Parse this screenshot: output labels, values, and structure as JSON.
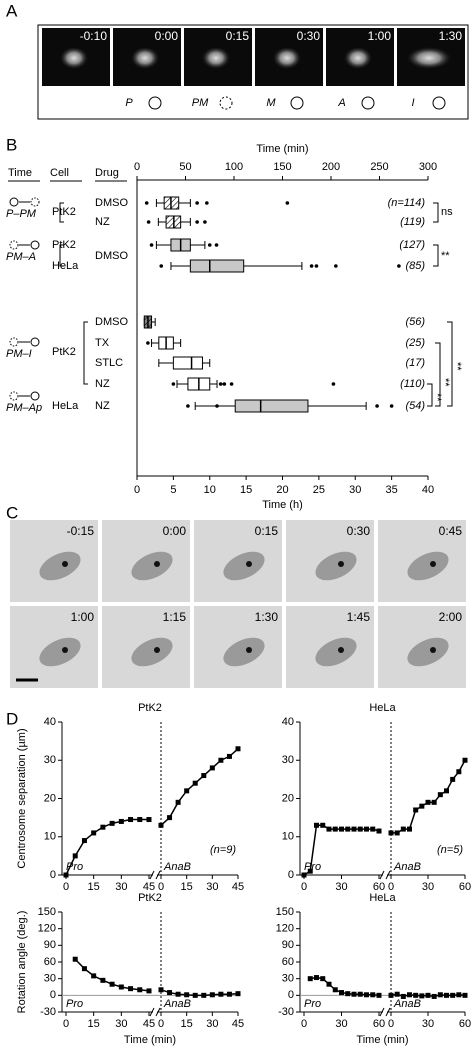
{
  "panel_labels": [
    "A",
    "B",
    "C",
    "D"
  ],
  "panel_a": {
    "frames": [
      "-0:10",
      "0:00",
      "0:15",
      "0:30",
      "1:00",
      "1:30"
    ],
    "phases": [
      "P",
      "PM",
      "M",
      "A",
      "I"
    ]
  },
  "panel_c": {
    "frames": [
      "-0:15",
      "0:00",
      "0:15",
      "0:30",
      "0:45",
      "1:00",
      "1:15",
      "1:30",
      "1:45",
      "2:00"
    ]
  },
  "chart_data": [
    {
      "type": "box",
      "headers": [
        "Time",
        "Cell",
        "Drug"
      ],
      "transitions": [
        "P–PM",
        "PM–A",
        "PM–I",
        "PM–Ap"
      ],
      "cells": [
        "PtK2",
        "PtK2",
        "HeLa",
        "PtK2",
        "HeLa"
      ],
      "shared_drug": "DMSO",
      "xlabel_top": "Time (min)",
      "xlim_top": [
        0,
        300
      ],
      "xticks_top": [
        0,
        50,
        100,
        150,
        200,
        250,
        300
      ],
      "xlabel": "Time (h)",
      "xlim": [
        0,
        40
      ],
      "xticks": [
        0,
        5,
        10,
        15,
        20,
        25,
        30,
        35,
        40
      ],
      "rows": [
        {
          "drug": "DMSO",
          "n_label": "(n=114)",
          "scale": "top",
          "color": "#ffffff",
          "hatched": true,
          "whislo": 20,
          "q1": 28,
          "med": 35,
          "q3": 43,
          "whishi": 55,
          "fliers": [
            10,
            62,
            72,
            155
          ]
        },
        {
          "drug": "NZ",
          "n_label": "(119)",
          "scale": "top",
          "color": "#ffffff",
          "hatched": true,
          "whislo": 22,
          "q1": 30,
          "med": 38,
          "q3": 45,
          "whishi": 55,
          "fliers": [
            12,
            62,
            70
          ]
        },
        {
          "n_label": "(127)",
          "scale": "top",
          "color": "#c8c8c8",
          "hatched": false,
          "whislo": 20,
          "q1": 35,
          "med": 45,
          "q3": 55,
          "whishi": 70,
          "fliers": [
            15,
            75,
            82
          ]
        },
        {
          "n_label": "(85)",
          "scale": "top",
          "color": "#c8c8c8",
          "hatched": false,
          "whislo": 35,
          "q1": 55,
          "med": 75,
          "q3": 110,
          "whishi": 170,
          "fliers": [
            25,
            180,
            185,
            205,
            270
          ]
        },
        {
          "drug": "DMSO",
          "n_label": "(56)",
          "scale": "bottom",
          "color": "#808080",
          "hatched": true,
          "whislo": 1,
          "q1": 1,
          "med": 1.5,
          "q3": 2,
          "whishi": 2.5,
          "fliers": []
        },
        {
          "drug": "TX",
          "n_label": "(25)",
          "scale": "bottom",
          "color": "#ffffff",
          "hatched": false,
          "whislo": 2,
          "q1": 3,
          "med": 4,
          "q3": 5,
          "whishi": 6,
          "fliers": [
            1.5
          ]
        },
        {
          "drug": "STLC",
          "n_label": "(17)",
          "scale": "bottom",
          "color": "#ffffff",
          "hatched": false,
          "whislo": 3,
          "q1": 5,
          "med": 7.5,
          "q3": 9,
          "whishi": 10,
          "fliers": []
        },
        {
          "drug": "NZ",
          "n_label": "(110)",
          "scale": "bottom",
          "color": "#ffffff",
          "hatched": false,
          "whislo": 5.5,
          "q1": 7,
          "med": 8.5,
          "q3": 10,
          "whishi": 11,
          "fliers": [
            5,
            11.5,
            12,
            13,
            27
          ]
        },
        {
          "drug": "NZ",
          "n_label": "(54)",
          "scale": "bottom",
          "color": "#c8c8c8",
          "hatched": false,
          "whislo": 8,
          "q1": 13.5,
          "med": 17,
          "q3": 23.5,
          "whishi": 31.5,
          "fliers": [
            7,
            11,
            33,
            35
          ]
        }
      ],
      "significance": [
        "ns",
        "**",
        "**",
        "**",
        "**"
      ]
    },
    {
      "type": "line",
      "title": "PtK2",
      "ylabel": "Centrosome separation (µm)",
      "n_label": "(n=9)",
      "ylim": [
        0,
        40
      ],
      "yticks": [
        0,
        10,
        20,
        30,
        40
      ],
      "xlim": [
        0,
        45
      ],
      "xticks": [
        0,
        15,
        30,
        45
      ],
      "segments": [
        {
          "label": "Pro",
          "x": [
            0,
            5,
            10,
            15,
            20,
            25,
            30,
            35,
            40,
            45
          ],
          "values": [
            0,
            5,
            9,
            11,
            12.5,
            13.5,
            14,
            14.5,
            14.5,
            14.5
          ]
        },
        {
          "label": "AnaB",
          "x": [
            0,
            5,
            10,
            15,
            20,
            25,
            30,
            35,
            40,
            45
          ],
          "values": [
            13,
            15,
            19,
            22,
            24,
            26,
            28,
            30,
            31,
            33
          ]
        }
      ]
    },
    {
      "type": "line",
      "title": "HeLa",
      "n_label": "(n=5)",
      "ylim": [
        0,
        40
      ],
      "yticks": [
        0,
        10,
        20,
        30,
        40
      ],
      "xlim": [
        0,
        60
      ],
      "xticks": [
        0,
        30,
        60
      ],
      "segments": [
        {
          "label": "Pro",
          "x": [
            0,
            5,
            10,
            15,
            20,
            25,
            30,
            35,
            40,
            45,
            50,
            55,
            60
          ],
          "values": [
            0,
            1,
            13,
            13,
            12,
            12,
            12,
            12,
            12,
            12,
            12,
            12,
            11.5
          ]
        },
        {
          "label": "AnaB",
          "x": [
            0,
            5,
            10,
            15,
            20,
            25,
            30,
            35,
            40,
            45,
            50,
            55,
            60
          ],
          "values": [
            11,
            11,
            12,
            12,
            17,
            18,
            19,
            19,
            21,
            22,
            25,
            27,
            30
          ]
        }
      ]
    },
    {
      "type": "line",
      "title": "PtK2",
      "ylabel": "Rotation angle (deg.)",
      "xlabel": "Time (min)",
      "ylim": [
        -30,
        150
      ],
      "yticks": [
        -30,
        0,
        30,
        60,
        90,
        120,
        150
      ],
      "xlim": [
        0,
        45
      ],
      "xticks": [
        0,
        15,
        30,
        45
      ],
      "segments": [
        {
          "label": "Pro",
          "x": [
            5,
            10,
            15,
            20,
            25,
            30,
            35,
            40,
            45
          ],
          "values": [
            65,
            48,
            35,
            27,
            20,
            15,
            12,
            10,
            8
          ]
        },
        {
          "label": "AnaB",
          "x": [
            0,
            5,
            10,
            15,
            20,
            25,
            30,
            35,
            40,
            45
          ],
          "values": [
            10,
            5,
            2,
            1,
            0,
            0,
            1,
            2,
            2,
            3
          ]
        }
      ]
    },
    {
      "type": "line",
      "title": "HeLa",
      "xlabel": "Time (min)",
      "ylim": [
        -30,
        150
      ],
      "yticks": [
        -30,
        0,
        30,
        60,
        90,
        120,
        150
      ],
      "xlim": [
        0,
        60
      ],
      "xticks": [
        0,
        30,
        60
      ],
      "segments": [
        {
          "label": "Pro",
          "x": [
            5,
            10,
            15,
            20,
            25,
            30,
            35,
            40,
            45,
            50,
            55,
            60
          ],
          "values": [
            30,
            32,
            30,
            20,
            10,
            5,
            3,
            2,
            2,
            1,
            1,
            0
          ]
        },
        {
          "label": "AnaB",
          "x": [
            0,
            5,
            10,
            15,
            20,
            25,
            30,
            35,
            40,
            45,
            50,
            55,
            60
          ],
          "values": [
            0,
            2,
            -2,
            1,
            0,
            -1,
            0,
            -2,
            1,
            0,
            0,
            1,
            0
          ]
        }
      ]
    }
  ]
}
